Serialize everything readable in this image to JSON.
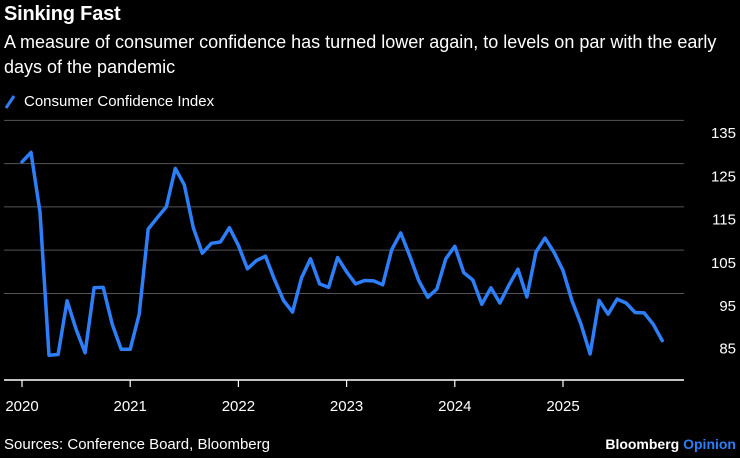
{
  "header": {
    "title": "Sinking Fast",
    "subtitle": "A measure of consumer confidence has turned lower again, to levels on par with the early days of the pandemic"
  },
  "footer": {
    "source": "Sources: Conference Board, Bloomberg",
    "brand_main": "Bloomberg",
    "brand_accent": "Opinion"
  },
  "colors": {
    "line": "#2d7ff9",
    "grid": "#555555",
    "background": "#000000"
  },
  "chart_data": {
    "type": "line",
    "title": "Sinking Fast",
    "legend": [
      "Consumer Confidence Index"
    ],
    "x_tick_labels": [
      "2020",
      "2021",
      "2022",
      "2023",
      "2024",
      "2025"
    ],
    "y_tick_labels": [
      "85",
      "95",
      "105",
      "115",
      "125",
      "135"
    ],
    "ylim": [
      80,
      135
    ],
    "grid": true,
    "series": [
      {
        "name": "Consumer Confidence Index",
        "start": "2020-01",
        "frequency": "monthly",
        "values": [
          130.4,
          132.6,
          118.8,
          85.7,
          85.9,
          98.3,
          91.7,
          86.3,
          101.3,
          101.4,
          92.9,
          87.1,
          87.1,
          95.2,
          114.9,
          117.5,
          120.0,
          128.9,
          125.1,
          115.2,
          109.3,
          111.6,
          111.9,
          115.2,
          111.1,
          105.7,
          107.6,
          108.6,
          103.2,
          98.4,
          95.7,
          103.6,
          108.0,
          102.2,
          101.4,
          108.3,
          105.0,
          102.2,
          103.0,
          102.9,
          102.0,
          110.1,
          114.0,
          108.7,
          103.0,
          99.1,
          101.0,
          108.0,
          110.9,
          104.8,
          103.1,
          97.5,
          101.3,
          97.8,
          101.9,
          105.6,
          99.2,
          109.6,
          112.8,
          109.5,
          105.3,
          98.3,
          92.9,
          86.0,
          98.4,
          95.2,
          98.7,
          97.8,
          95.6,
          95.5,
          92.9,
          89.1
        ]
      }
    ]
  }
}
